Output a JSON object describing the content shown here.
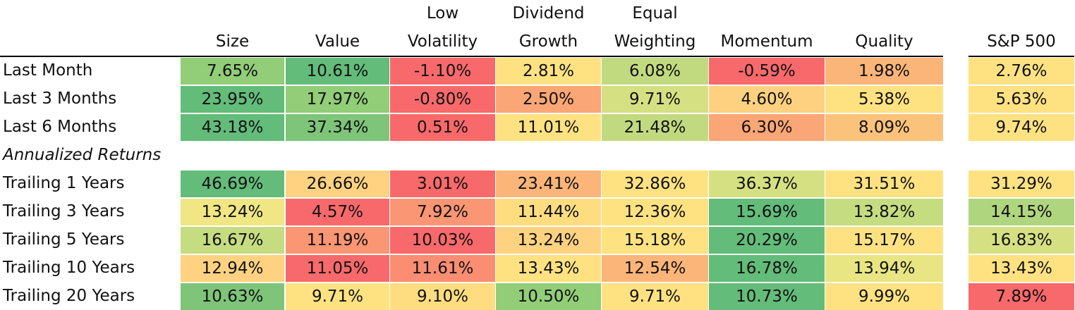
{
  "chart_data": {
    "type": "heatmap",
    "columns": [
      {
        "line1": "",
        "line2": "Size"
      },
      {
        "line1": "",
        "line2": "Value"
      },
      {
        "line1": "Low",
        "line2": "Volatility"
      },
      {
        "line1": "Dividend",
        "line2": "Growth"
      },
      {
        "line1": "Equal",
        "line2": "Weighting"
      },
      {
        "line1": "",
        "line2": "Momentum"
      },
      {
        "line1": "",
        "line2": "Quality"
      },
      {
        "line1": "",
        "line2": "S&P 500"
      }
    ],
    "section_label": "Annualized Returns",
    "rows": [
      {
        "label": "Last Month",
        "values": [
          "7.65%",
          "10.61%",
          "-1.10%",
          "2.81%",
          "6.08%",
          "-0.59%",
          "1.98%",
          "2.76%"
        ],
        "colors": [
          "#92cd78",
          "#63bc7a",
          "#f8696b",
          "#fee282",
          "#c1da80",
          "#f8696b",
          "#fbb579",
          "#fee282"
        ]
      },
      {
        "label": "Last 3 Months",
        "values": [
          "23.95%",
          "17.97%",
          "-0.80%",
          "2.50%",
          "9.71%",
          "4.60%",
          "5.38%",
          "5.63%"
        ],
        "colors": [
          "#63bc7a",
          "#92cd78",
          "#f8696b",
          "#fba676",
          "#d5e082",
          "#fdd17f",
          "#fee282",
          "#fee282"
        ]
      },
      {
        "label": "Last 6 Months",
        "values": [
          "43.18%",
          "37.34%",
          "0.51%",
          "11.01%",
          "21.48%",
          "6.30%",
          "8.09%",
          "9.74%"
        ],
        "colors": [
          "#63bc7a",
          "#7ec57a",
          "#f8696b",
          "#fee282",
          "#c1da80",
          "#fba676",
          "#fbc27c",
          "#fee282"
        ]
      },
      {
        "label": "Trailing 1 Years",
        "values": [
          "46.69%",
          "26.66%",
          "3.01%",
          "23.41%",
          "32.86%",
          "36.37%",
          "31.51%",
          "31.29%"
        ],
        "colors": [
          "#63bc7a",
          "#fed280",
          "#f8696b",
          "#fbb579",
          "#fee282",
          "#d5e082",
          "#fee282",
          "#fee282"
        ]
      },
      {
        "label": "Trailing 3 Years",
        "values": [
          "13.24%",
          "4.57%",
          "7.92%",
          "11.44%",
          "12.36%",
          "15.69%",
          "13.82%",
          "14.15%"
        ],
        "colors": [
          "#f0e684",
          "#f8696b",
          "#fa9673",
          "#fedd81",
          "#fee282",
          "#63bc7a",
          "#c6dc81",
          "#b0d57f"
        ]
      },
      {
        "label": "Trailing 5 Years",
        "values": [
          "16.67%",
          "11.19%",
          "10.03%",
          "13.24%",
          "15.18%",
          "20.29%",
          "15.17%",
          "16.83%"
        ],
        "colors": [
          "#c6dc81",
          "#fa9673",
          "#f8696b",
          "#fed280",
          "#fee282",
          "#63bc7a",
          "#fee282",
          "#d5e082"
        ]
      },
      {
        "label": "Trailing 10 Years",
        "values": [
          "12.94%",
          "11.05%",
          "11.61%",
          "13.43%",
          "12.54%",
          "16.78%",
          "13.94%",
          "13.43%"
        ],
        "colors": [
          "#fed280",
          "#f8696b",
          "#fa8d72",
          "#fee282",
          "#fbb579",
          "#63bc7a",
          "#e8e583",
          "#fee282"
        ]
      },
      {
        "label": "Trailing 20 Years",
        "values": [
          "10.63%",
          "9.71%",
          "9.10%",
          "10.50%",
          "9.71%",
          "10.73%",
          "9.99%",
          "7.89%"
        ],
        "colors": [
          "#7ec57a",
          "#fee282",
          "#fedd81",
          "#92cd78",
          "#fee282",
          "#63bc7a",
          "#fee282",
          "#f8696b"
        ]
      }
    ]
  }
}
